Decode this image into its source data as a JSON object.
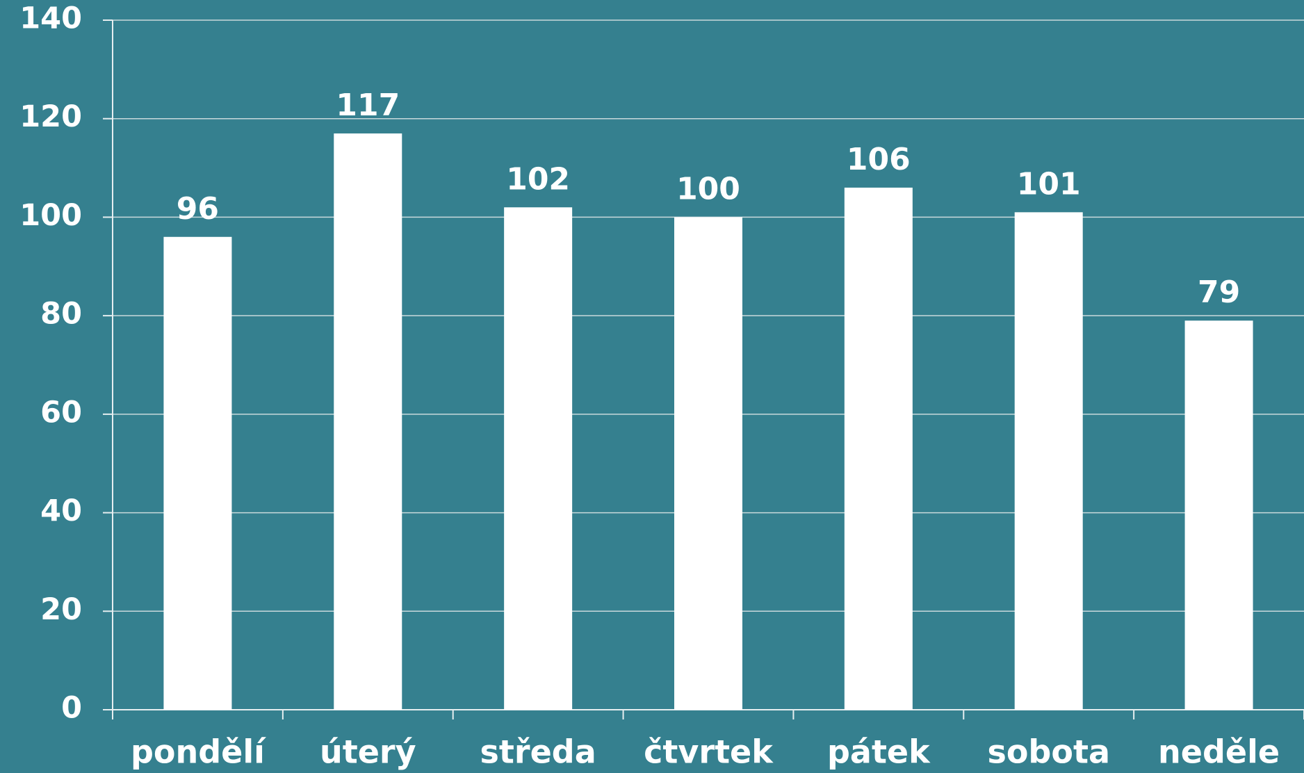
{
  "chart_data": {
    "type": "bar",
    "categories": [
      "pondělí",
      "úterý",
      "středa",
      "čtvrtek",
      "pátek",
      "sobota",
      "neděle"
    ],
    "values": [
      96,
      117,
      102,
      100,
      106,
      101,
      79
    ],
    "color": "#ffffff",
    "ylim": [
      0,
      140
    ],
    "yticks": [
      0,
      20,
      40,
      60,
      80,
      100,
      120,
      140
    ],
    "grid": true
  }
}
